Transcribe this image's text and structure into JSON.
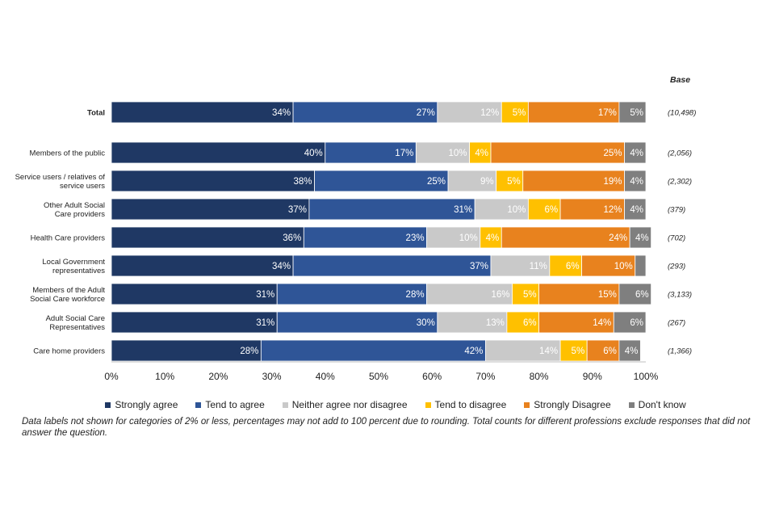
{
  "chart_data": {
    "type": "bar",
    "orientation": "horizontal",
    "stacked": true,
    "categories": [
      [
        "Total"
      ],
      [
        "Members of the public"
      ],
      [
        "Service users / relatives of",
        "service users"
      ],
      [
        "Other Adult Social",
        "Care providers"
      ],
      [
        "Health Care providers"
      ],
      [
        "Local Government",
        "representatives"
      ],
      [
        "Members of the Adult",
        "Social Care workforce"
      ],
      [
        "Adult Social Care",
        "Representatives"
      ],
      [
        "Care home providers"
      ]
    ],
    "series": [
      {
        "name": "Strongly agree",
        "color": "#1f3864",
        "values": [
          34,
          40,
          38,
          37,
          36,
          34,
          31,
          31,
          28
        ]
      },
      {
        "name": "Tend to agree",
        "color": "#2f5597",
        "values": [
          27,
          17,
          25,
          31,
          23,
          37,
          28,
          30,
          42
        ]
      },
      {
        "name": "Neither agree nor disagree",
        "color": "#c9c9c9",
        "values": [
          12,
          10,
          9,
          10,
          10,
          11,
          16,
          13,
          14
        ]
      },
      {
        "name": "Tend to disagree",
        "color": "#ffc000",
        "values": [
          5,
          4,
          5,
          6,
          4,
          6,
          5,
          6,
          5
        ]
      },
      {
        "name": "Strongly Disagree",
        "color": "#e8821e",
        "values": [
          17,
          25,
          19,
          12,
          24,
          10,
          15,
          14,
          6
        ]
      },
      {
        "name": "Don't know",
        "color": "#7f7f7f",
        "values": [
          5,
          4,
          4,
          4,
          4,
          2,
          6,
          6,
          4
        ]
      }
    ],
    "data_labels": [
      [
        "34%",
        "27%",
        "12%",
        "5%",
        "17%",
        "5%"
      ],
      [
        "40%",
        "17%",
        "10%",
        "4%",
        "25%",
        "4%"
      ],
      [
        "38%",
        "25%",
        "9%",
        "5%",
        "19%",
        "4%"
      ],
      [
        "37%",
        "31%",
        "10%",
        "6%",
        "12%",
        "4%"
      ],
      [
        "36%",
        "23%",
        "10%",
        "4%",
        "24%",
        "4%"
      ],
      [
        "34%",
        "37%",
        "11%",
        "6%",
        "10%",
        ""
      ],
      [
        "31%",
        "28%",
        "16%",
        "5%",
        "15%",
        "6%"
      ],
      [
        "31%",
        "30%",
        "13%",
        "6%",
        "14%",
        "6%"
      ],
      [
        "28%",
        "42%",
        "14%",
        "5%",
        "6%",
        "4%"
      ]
    ],
    "base_title": "Base",
    "base": [
      "(10,498)",
      "(2,056)",
      "(2,302)",
      "(379)",
      "(702)",
      "(293)",
      "(3,133)",
      "(267)",
      "(1,366)"
    ],
    "x_ticks": [
      "0%",
      "10%",
      "20%",
      "30%",
      "40%",
      "50%",
      "60%",
      "70%",
      "80%",
      "90%",
      "100%"
    ],
    "xlim": [
      0,
      100
    ],
    "legend_position": "bottom",
    "grid": false
  },
  "footnote": "Data labels not shown for categories of 2% or less, percentages may not add to 100 percent due to rounding. Total counts for different professions exclude responses that did not answer the question."
}
